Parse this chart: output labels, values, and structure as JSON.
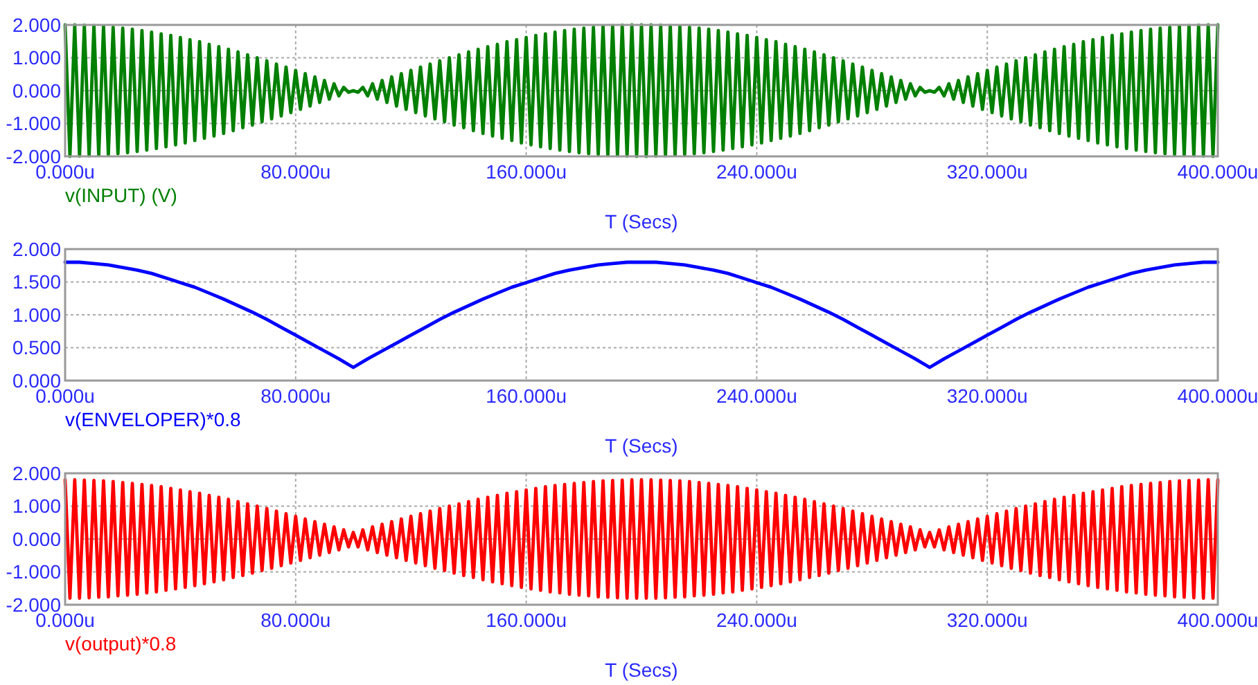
{
  "chart_data": [
    {
      "type": "line",
      "xlabel": "T (Secs)",
      "grid": true,
      "legend": "bottom left",
      "xlim": [
        0,
        400
      ],
      "ylim": [
        -2,
        2
      ],
      "xticks": [
        {
          "value": 0,
          "label": "0.000u"
        },
        {
          "value": 80,
          "label": "80.000u"
        },
        {
          "value": 160,
          "label": "160.000u"
        },
        {
          "value": 240,
          "label": "240.000u"
        },
        {
          "value": 320,
          "label": "320.000u"
        },
        {
          "value": 400,
          "label": "400.000u"
        }
      ],
      "yticks": [
        {
          "value": -2,
          "label": "-2.000"
        },
        {
          "value": -1,
          "label": "-1.000"
        },
        {
          "value": 0,
          "label": "0.000"
        },
        {
          "value": 1,
          "label": "1.000"
        },
        {
          "value": 2,
          "label": "2.000"
        }
      ],
      "x": [
        0,
        1.67,
        3.33,
        5,
        6.67,
        8.33,
        10,
        11.67,
        13.33,
        15,
        16.67,
        18.33,
        20,
        21.67,
        23.33,
        25,
        26.67,
        28.33,
        30,
        31.67,
        33.33,
        35,
        36.67,
        38.33,
        40,
        41.67,
        43.33,
        45,
        46.67,
        48.33,
        50,
        51.67,
        53.33,
        55,
        56.67,
        58.33,
        60,
        61.67,
        63.33,
        65,
        66.67,
        68.33,
        70,
        71.67,
        73.33,
        75,
        76.67,
        78.33,
        80,
        81.67,
        83.33,
        85,
        86.67,
        88.33,
        90,
        91.67,
        93.33,
        95,
        96.67,
        98.33,
        100,
        101.67,
        103.33,
        105,
        106.67,
        108.33,
        110,
        111.67,
        113.33,
        115,
        116.67,
        118.33,
        120,
        121.67,
        123.33,
        125,
        126.67,
        128.33,
        130,
        131.67,
        133.33,
        135,
        136.67,
        138.33,
        140,
        141.67,
        143.33,
        145,
        146.67,
        148.33,
        150,
        151.67,
        153.33,
        155,
        156.67,
        158.33,
        160,
        161.67,
        163.33,
        165,
        166.67,
        168.33,
        170,
        171.67,
        173.33,
        175,
        176.67,
        178.33,
        180,
        181.67,
        183.33,
        185,
        186.67,
        188.33,
        190,
        191.67,
        193.33,
        195,
        196.67,
        198.33,
        200,
        201.67,
        203.33,
        205,
        206.67,
        208.33,
        210,
        211.67,
        213.33,
        215,
        216.67,
        218.33,
        220,
        221.67,
        223.33,
        225,
        226.67,
        228.33,
        230,
        231.67,
        233.33,
        235,
        236.67,
        238.33,
        240,
        241.67,
        243.33,
        245,
        246.67,
        248.33,
        250,
        251.67,
        253.33,
        255,
        256.67,
        258.33,
        260,
        261.67,
        263.33,
        265,
        266.67,
        268.33,
        270,
        271.67,
        273.33,
        275,
        276.67,
        278.33,
        280,
        281.67,
        283.33,
        285,
        286.67,
        288.33,
        290,
        291.67,
        293.33,
        295,
        296.67,
        298.33,
        300,
        301.67,
        303.33,
        305,
        306.67,
        308.33,
        310,
        311.67,
        313.33,
        315,
        316.67,
        318.33,
        320,
        321.67,
        323.33,
        325,
        326.67,
        328.33,
        330,
        331.67,
        333.33,
        335,
        336.67,
        338.33,
        340,
        341.67,
        343.33,
        345,
        346.67,
        348.33,
        350,
        351.67,
        353.33,
        355,
        356.67,
        358.33,
        360,
        361.67,
        363.33,
        365,
        366.67,
        368.33,
        370,
        371.67,
        373.33,
        375,
        376.67,
        378.33,
        380,
        381.67,
        383.33,
        385,
        386.67,
        388.33,
        390,
        391.67,
        393.33,
        395,
        396.67,
        398.33,
        400
      ],
      "series": [
        {
          "name": "v(INPUT) (V)",
          "color": "#008000",
          "values": [
            2.0,
            -2.0,
            2.0,
            -1.99,
            1.99,
            -1.98,
            1.98,
            -1.97,
            1.96,
            -1.94,
            1.93,
            -1.92,
            1.9,
            -1.89,
            1.87,
            -1.85,
            1.83,
            -1.81,
            1.78,
            -1.76,
            1.73,
            -1.71,
            1.68,
            -1.65,
            1.62,
            -1.59,
            1.55,
            -1.52,
            1.49,
            -1.45,
            1.41,
            -1.38,
            1.34,
            -1.3,
            1.26,
            -1.22,
            1.18,
            -1.13,
            1.09,
            -1.05,
            1.0,
            -0.95,
            0.91,
            -0.86,
            0.81,
            -0.77,
            0.72,
            -0.67,
            0.62,
            -0.57,
            0.52,
            -0.47,
            0.42,
            -0.36,
            0.31,
            -0.26,
            0.21,
            -0.16,
            0.1,
            -0.05,
            0.0,
            -0.05,
            0.1,
            -0.16,
            0.21,
            -0.26,
            0.31,
            -0.36,
            0.42,
            -0.47,
            0.52,
            -0.57,
            0.62,
            -0.67,
            0.72,
            -0.77,
            0.81,
            -0.86,
            0.91,
            -0.95,
            1.0,
            -1.05,
            1.09,
            -1.13,
            1.18,
            -1.22,
            1.26,
            -1.3,
            1.34,
            -1.38,
            1.41,
            -1.45,
            1.49,
            -1.52,
            1.55,
            -1.59,
            1.62,
            -1.65,
            1.68,
            -1.71,
            1.73,
            -1.76,
            1.78,
            -1.81,
            1.83,
            -1.85,
            1.87,
            -1.89,
            1.9,
            -1.92,
            1.93,
            -1.94,
            1.96,
            -1.97,
            1.98,
            -1.98,
            1.99,
            -1.99,
            2.0,
            -2.0,
            2.0,
            -2.0,
            2.0,
            -1.99,
            1.99,
            -1.98,
            1.98,
            -1.97,
            1.96,
            -1.94,
            1.93,
            -1.92,
            1.9,
            -1.89,
            1.87,
            -1.85,
            1.83,
            -1.81,
            1.78,
            -1.76,
            1.73,
            -1.71,
            1.68,
            -1.65,
            1.62,
            -1.59,
            1.55,
            -1.52,
            1.49,
            -1.45,
            1.41,
            -1.38,
            1.34,
            -1.3,
            1.26,
            -1.22,
            1.18,
            -1.13,
            1.09,
            -1.05,
            1.0,
            -0.95,
            0.91,
            -0.86,
            0.81,
            -0.77,
            0.72,
            -0.67,
            0.62,
            -0.57,
            0.52,
            -0.47,
            0.42,
            -0.36,
            0.31,
            -0.26,
            0.21,
            -0.16,
            0.1,
            -0.05,
            0.0,
            -0.05,
            0.1,
            -0.16,
            0.21,
            -0.26,
            0.31,
            -0.36,
            0.42,
            -0.47,
            0.52,
            -0.57,
            0.62,
            -0.67,
            0.72,
            -0.77,
            0.81,
            -0.86,
            0.91,
            -0.95,
            1.0,
            -1.05,
            1.09,
            -1.13,
            1.18,
            -1.22,
            1.26,
            -1.3,
            1.34,
            -1.38,
            1.41,
            -1.45,
            1.49,
            -1.52,
            1.55,
            -1.59,
            1.62,
            -1.65,
            1.68,
            -1.71,
            1.73,
            -1.76,
            1.78,
            -1.81,
            1.83,
            -1.85,
            1.87,
            -1.89,
            1.9,
            -1.92,
            1.93,
            -1.94,
            1.96,
            -1.97,
            1.98,
            -1.98,
            1.99,
            -1.99,
            2.0,
            -2.0,
            2.0
          ]
        }
      ]
    },
    {
      "type": "line",
      "xlabel": "T (Secs)",
      "grid": true,
      "legend": "bottom left",
      "xlim": [
        0,
        400
      ],
      "ylim": [
        0,
        2
      ],
      "xticks": [
        {
          "value": 0,
          "label": "0.000u"
        },
        {
          "value": 80,
          "label": "80.000u"
        },
        {
          "value": 160,
          "label": "160.000u"
        },
        {
          "value": 240,
          "label": "240.000u"
        },
        {
          "value": 320,
          "label": "320.000u"
        },
        {
          "value": 400,
          "label": "400.000u"
        }
      ],
      "yticks": [
        {
          "value": 0,
          "label": "0.000"
        },
        {
          "value": 0.5,
          "label": "0.500"
        },
        {
          "value": 1,
          "label": "1.000"
        },
        {
          "value": 1.5,
          "label": "1.500"
        },
        {
          "value": 2,
          "label": "2.000"
        }
      ],
      "x": [
        0,
        5,
        10,
        15,
        20,
        25,
        30,
        35,
        40,
        45,
        50,
        55,
        60,
        65,
        70,
        75,
        80,
        85,
        90,
        95,
        100,
        105,
        110,
        115,
        120,
        125,
        130,
        135,
        140,
        145,
        150,
        155,
        160,
        165,
        170,
        175,
        180,
        185,
        190,
        195,
        200,
        205,
        210,
        215,
        220,
        225,
        230,
        235,
        240,
        245,
        250,
        255,
        260,
        265,
        270,
        275,
        280,
        285,
        290,
        295,
        300,
        305,
        310,
        315,
        320,
        325,
        330,
        335,
        340,
        345,
        350,
        355,
        360,
        365,
        370,
        375,
        380,
        385,
        390,
        395,
        400
      ],
      "series": [
        {
          "name": "v(ENVELOPER)*0.8",
          "color": "#0000ff",
          "values": [
            1.8,
            1.8,
            1.78,
            1.76,
            1.72,
            1.68,
            1.63,
            1.56,
            1.49,
            1.42,
            1.33,
            1.24,
            1.14,
            1.04,
            0.93,
            0.81,
            0.69,
            0.57,
            0.45,
            0.33,
            0.2,
            0.33,
            0.45,
            0.57,
            0.69,
            0.81,
            0.93,
            1.04,
            1.14,
            1.24,
            1.33,
            1.42,
            1.49,
            1.56,
            1.63,
            1.68,
            1.72,
            1.76,
            1.78,
            1.8,
            1.8,
            1.8,
            1.78,
            1.76,
            1.72,
            1.68,
            1.63,
            1.56,
            1.49,
            1.42,
            1.33,
            1.24,
            1.14,
            1.04,
            0.93,
            0.81,
            0.69,
            0.57,
            0.45,
            0.33,
            0.2,
            0.33,
            0.45,
            0.57,
            0.69,
            0.81,
            0.93,
            1.04,
            1.14,
            1.24,
            1.33,
            1.42,
            1.49,
            1.56,
            1.63,
            1.68,
            1.72,
            1.76,
            1.78,
            1.8,
            1.8
          ]
        }
      ]
    },
    {
      "type": "line",
      "xlabel": "T (Secs)",
      "grid": true,
      "legend": "bottom left",
      "xlim": [
        0,
        400
      ],
      "ylim": [
        -2,
        2
      ],
      "xticks": [
        {
          "value": 0,
          "label": "0.000u"
        },
        {
          "value": 80,
          "label": "80.000u"
        },
        {
          "value": 160,
          "label": "160.000u"
        },
        {
          "value": 240,
          "label": "240.000u"
        },
        {
          "value": 320,
          "label": "320.000u"
        },
        {
          "value": 400,
          "label": "400.000u"
        }
      ],
      "yticks": [
        {
          "value": -2,
          "label": "-2.000"
        },
        {
          "value": -1,
          "label": "-1.000"
        },
        {
          "value": 0,
          "label": "0.000"
        },
        {
          "value": 1,
          "label": "1.000"
        },
        {
          "value": 2,
          "label": "2.000"
        }
      ],
      "x": [
        0,
        1.67,
        3.33,
        5,
        6.67,
        8.33,
        10,
        11.67,
        13.33,
        15,
        16.67,
        18.33,
        20,
        21.67,
        23.33,
        25,
        26.67,
        28.33,
        30,
        31.67,
        33.33,
        35,
        36.67,
        38.33,
        40,
        41.67,
        43.33,
        45,
        46.67,
        48.33,
        50,
        51.67,
        53.33,
        55,
        56.67,
        58.33,
        60,
        61.67,
        63.33,
        65,
        66.67,
        68.33,
        70,
        71.67,
        73.33,
        75,
        76.67,
        78.33,
        80,
        81.67,
        83.33,
        85,
        86.67,
        88.33,
        90,
        91.67,
        93.33,
        95,
        96.67,
        98.33,
        100,
        101.67,
        103.33,
        105,
        106.67,
        108.33,
        110,
        111.67,
        113.33,
        115,
        116.67,
        118.33,
        120,
        121.67,
        123.33,
        125,
        126.67,
        128.33,
        130,
        131.67,
        133.33,
        135,
        136.67,
        138.33,
        140,
        141.67,
        143.33,
        145,
        146.67,
        148.33,
        150,
        151.67,
        153.33,
        155,
        156.67,
        158.33,
        160,
        161.67,
        163.33,
        165,
        166.67,
        168.33,
        170,
        171.67,
        173.33,
        175,
        176.67,
        178.33,
        180,
        181.67,
        183.33,
        185,
        186.67,
        188.33,
        190,
        191.67,
        193.33,
        195,
        196.67,
        198.33,
        200,
        201.67,
        203.33,
        205,
        206.67,
        208.33,
        210,
        211.67,
        213.33,
        215,
        216.67,
        218.33,
        220,
        221.67,
        223.33,
        225,
        226.67,
        228.33,
        230,
        231.67,
        233.33,
        235,
        236.67,
        238.33,
        240,
        241.67,
        243.33,
        245,
        246.67,
        248.33,
        250,
        251.67,
        253.33,
        255,
        256.67,
        258.33,
        260,
        261.67,
        263.33,
        265,
        266.67,
        268.33,
        270,
        271.67,
        273.33,
        275,
        276.67,
        278.33,
        280,
        281.67,
        283.33,
        285,
        286.67,
        288.33,
        290,
        291.67,
        293.33,
        295,
        296.67,
        298.33,
        300,
        301.67,
        303.33,
        305,
        306.67,
        308.33,
        310,
        311.67,
        313.33,
        315,
        316.67,
        318.33,
        320,
        321.67,
        323.33,
        325,
        326.67,
        328.33,
        330,
        331.67,
        333.33,
        335,
        336.67,
        338.33,
        340,
        341.67,
        343.33,
        345,
        346.67,
        348.33,
        350,
        351.67,
        353.33,
        355,
        356.67,
        358.33,
        360,
        361.67,
        363.33,
        365,
        366.67,
        368.33,
        370,
        371.67,
        373.33,
        375,
        376.67,
        378.33,
        380,
        381.67,
        383.33,
        385,
        386.67,
        388.33,
        390,
        391.67,
        393.33,
        395,
        396.67,
        398.33,
        400
      ],
      "series": [
        {
          "name": "v(output)*0.8",
          "color": "#ff0000",
          "values": [
            1.8,
            -1.8,
            1.8,
            -1.8,
            1.79,
            -1.79,
            1.78,
            -1.77,
            1.77,
            -1.76,
            1.75,
            -1.73,
            1.72,
            -1.71,
            1.69,
            -1.68,
            1.66,
            -1.64,
            1.63,
            -1.61,
            1.59,
            -1.56,
            1.54,
            -1.52,
            1.49,
            -1.47,
            1.44,
            -1.42,
            1.39,
            -1.36,
            1.33,
            -1.3,
            1.27,
            -1.24,
            1.21,
            -1.17,
            1.14,
            -1.11,
            1.07,
            -1.04,
            1.0,
            -0.96,
            0.93,
            -0.89,
            0.85,
            -0.81,
            0.77,
            -0.73,
            0.69,
            -0.65,
            0.61,
            -0.57,
            0.53,
            -0.49,
            0.45,
            -0.41,
            0.37,
            -0.33,
            0.28,
            -0.24,
            0.2,
            -0.24,
            0.28,
            -0.33,
            0.37,
            -0.41,
            0.45,
            -0.49,
            0.53,
            -0.57,
            0.61,
            -0.65,
            0.69,
            -0.73,
            0.77,
            -0.81,
            0.85,
            -0.89,
            0.93,
            -0.96,
            1.0,
            -1.04,
            1.07,
            -1.11,
            1.14,
            -1.17,
            1.21,
            -1.24,
            1.27,
            -1.3,
            1.33,
            -1.36,
            1.39,
            -1.42,
            1.44,
            -1.47,
            1.49,
            -1.52,
            1.54,
            -1.56,
            1.59,
            -1.61,
            1.63,
            -1.64,
            1.66,
            -1.68,
            1.69,
            -1.71,
            1.72,
            -1.73,
            1.75,
            -1.76,
            1.77,
            -1.77,
            1.78,
            -1.79,
            1.79,
            -1.8,
            1.8,
            -1.8,
            1.8,
            -1.8,
            1.8,
            -1.8,
            1.79,
            -1.79,
            1.78,
            -1.77,
            1.77,
            -1.76,
            1.75,
            -1.73,
            1.72,
            -1.71,
            1.69,
            -1.68,
            1.66,
            -1.64,
            1.63,
            -1.61,
            1.59,
            -1.56,
            1.54,
            -1.52,
            1.49,
            -1.47,
            1.44,
            -1.42,
            1.39,
            -1.36,
            1.33,
            -1.3,
            1.27,
            -1.24,
            1.21,
            -1.17,
            1.14,
            -1.11,
            1.07,
            -1.04,
            1.0,
            -0.96,
            0.93,
            -0.89,
            0.85,
            -0.81,
            0.77,
            -0.73,
            0.69,
            -0.65,
            0.61,
            -0.57,
            0.53,
            -0.49,
            0.45,
            -0.41,
            0.37,
            -0.33,
            0.28,
            -0.24,
            0.2,
            -0.24,
            0.28,
            -0.33,
            0.37,
            -0.41,
            0.45,
            -0.49,
            0.53,
            -0.57,
            0.61,
            -0.65,
            0.69,
            -0.73,
            0.77,
            -0.81,
            0.85,
            -0.89,
            0.93,
            -0.96,
            1.0,
            -1.04,
            1.07,
            -1.11,
            1.14,
            -1.17,
            1.21,
            -1.24,
            1.27,
            -1.3,
            1.33,
            -1.36,
            1.39,
            -1.42,
            1.44,
            -1.47,
            1.49,
            -1.52,
            1.54,
            -1.56,
            1.59,
            -1.61,
            1.63,
            -1.64,
            1.66,
            -1.68,
            1.69,
            -1.71,
            1.72,
            -1.73,
            1.75,
            -1.76,
            1.77,
            -1.77,
            1.78,
            -1.79,
            1.79,
            -1.8,
            1.8,
            -1.8,
            1.8
          ]
        }
      ]
    }
  ]
}
